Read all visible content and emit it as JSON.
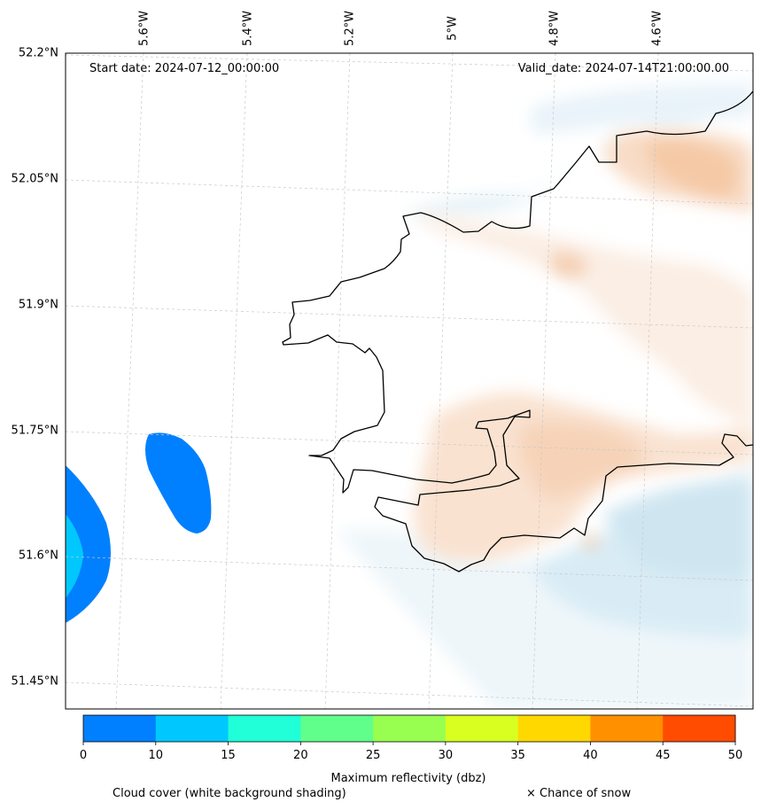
{
  "header": {
    "start_date": "Start date: 2024-07-12_00:00:00",
    "valid_date": "Valid_date: 2024-07-14T21:00:00.00"
  },
  "lat_labels": [
    "52.2°N",
    "52.05°N",
    "51.9°N",
    "51.75°N",
    "51.6°N",
    "51.45°N"
  ],
  "lon_labels": [
    "5.6°W",
    "5.4°W",
    "5.2°W",
    "5°W",
    "4.8°W",
    "4.6°W"
  ],
  "colorbar": {
    "title": "Maximum reflectivity (dbz)",
    "ticks": [
      "0",
      "10",
      "15",
      "20",
      "25",
      "30",
      "35",
      "40",
      "45",
      "50"
    ],
    "colors": [
      "#0080ff",
      "#00c8ff",
      "#20ffd8",
      "#60ff8c",
      "#98ff50",
      "#d8ff20",
      "#ffd800",
      "#ff9000",
      "#ff4c00"
    ]
  },
  "legend": {
    "cloud_cover": "Cloud cover (white background shading)",
    "snow": "× Chance of snow"
  }
}
